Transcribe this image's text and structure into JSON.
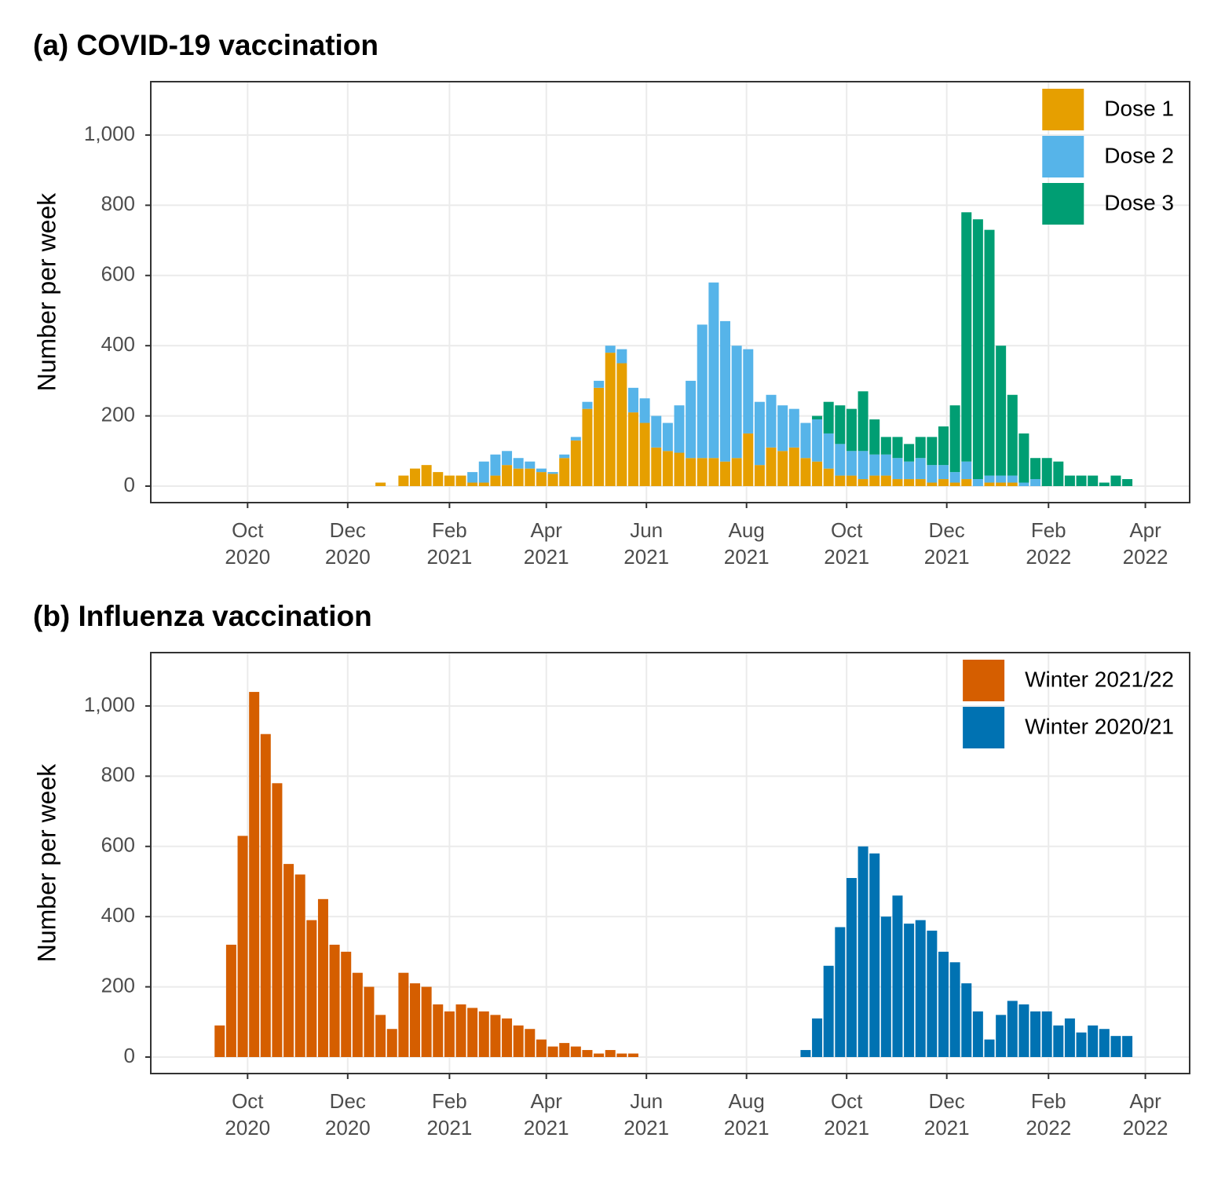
{
  "chart_data": [
    {
      "type": "bar",
      "stacked": true,
      "title": "(a) COVID-19 vaccination",
      "ylabel": "Number per week",
      "x": [
        "2020-12-21",
        "2020-12-28",
        "2021-01-04",
        "2021-01-11",
        "2021-01-18",
        "2021-01-25",
        "2021-02-01",
        "2021-02-08",
        "2021-02-15",
        "2021-02-22",
        "2021-03-01",
        "2021-03-08",
        "2021-03-15",
        "2021-03-22",
        "2021-03-29",
        "2021-04-05",
        "2021-04-12",
        "2021-04-19",
        "2021-04-26",
        "2021-05-03",
        "2021-05-10",
        "2021-05-17",
        "2021-05-24",
        "2021-05-31",
        "2021-06-07",
        "2021-06-14",
        "2021-06-21",
        "2021-06-28",
        "2021-07-05",
        "2021-07-12",
        "2021-07-19",
        "2021-07-26",
        "2021-08-02",
        "2021-08-09",
        "2021-08-16",
        "2021-08-23",
        "2021-08-30",
        "2021-09-06",
        "2021-09-13",
        "2021-09-20",
        "2021-09-27",
        "2021-10-04",
        "2021-10-11",
        "2021-10-18",
        "2021-10-25",
        "2021-11-01",
        "2021-11-08",
        "2021-11-15",
        "2021-11-22",
        "2021-11-29",
        "2021-12-06",
        "2021-12-13",
        "2021-12-20",
        "2021-12-27",
        "2022-01-03",
        "2022-01-10",
        "2022-01-17",
        "2022-01-24",
        "2022-01-31",
        "2022-02-07",
        "2022-02-14",
        "2022-02-21",
        "2022-02-28",
        "2022-03-07",
        "2022-03-14",
        "2022-03-21"
      ],
      "series": [
        {
          "name": "Dose 1",
          "color": "#E69F00",
          "values": [
            10,
            null,
            30,
            50,
            60,
            40,
            30,
            30,
            10,
            10,
            30,
            60,
            50,
            50,
            40,
            35,
            80,
            130,
            220,
            280,
            380,
            350,
            210,
            180,
            110,
            100,
            95,
            80,
            80,
            80,
            70,
            80,
            150,
            60,
            110,
            100,
            110,
            80,
            70,
            50,
            30,
            30,
            20,
            30,
            30,
            20,
            20,
            20,
            10,
            20,
            10,
            20,
            null,
            10,
            10,
            10,
            null,
            null,
            null,
            null,
            null,
            null,
            null,
            null,
            null,
            null
          ]
        },
        {
          "name": "Dose 2",
          "color": "#56B4E9",
          "values": [
            null,
            null,
            null,
            null,
            null,
            null,
            null,
            null,
            30,
            60,
            60,
            40,
            30,
            20,
            10,
            5,
            10,
            10,
            20,
            20,
            20,
            40,
            70,
            70,
            90,
            80,
            135,
            220,
            380,
            500,
            400,
            320,
            240,
            180,
            150,
            130,
            110,
            100,
            120,
            100,
            90,
            70,
            80,
            60,
            60,
            60,
            50,
            60,
            50,
            40,
            30,
            50,
            20,
            20,
            20,
            20,
            10,
            20,
            null,
            null,
            null,
            null,
            null,
            null,
            null,
            null
          ]
        },
        {
          "name": "Dose 3",
          "color": "#009E73",
          "values": [
            null,
            null,
            null,
            null,
            null,
            null,
            null,
            null,
            null,
            null,
            null,
            null,
            null,
            null,
            null,
            null,
            null,
            null,
            null,
            null,
            null,
            null,
            null,
            null,
            null,
            null,
            null,
            null,
            null,
            null,
            null,
            null,
            null,
            null,
            null,
            null,
            null,
            null,
            10,
            90,
            110,
            120,
            170,
            100,
            50,
            60,
            50,
            60,
            80,
            110,
            190,
            710,
            740,
            700,
            370,
            230,
            140,
            60,
            80,
            70,
            30,
            30,
            30,
            10,
            30,
            20
          ]
        }
      ],
      "xlim": [
        "2020-08-03",
        "2022-04-28"
      ],
      "xticks": [
        {
          "value": "2020-10-01",
          "label": "Oct\n2020"
        },
        {
          "value": "2020-12-01",
          "label": "Dec\n2020"
        },
        {
          "value": "2021-02-01",
          "label": "Feb\n2021"
        },
        {
          "value": "2021-04-01",
          "label": "Apr\n2021"
        },
        {
          "value": "2021-06-01",
          "label": "Jun\n2021"
        },
        {
          "value": "2021-08-01",
          "label": "Aug\n2021"
        },
        {
          "value": "2021-10-01",
          "label": "Oct\n2021"
        },
        {
          "value": "2021-12-01",
          "label": "Dec\n2021"
        },
        {
          "value": "2022-02-01",
          "label": "Feb\n2022"
        },
        {
          "value": "2022-04-01",
          "label": "Apr\n2022"
        }
      ],
      "ylim": [
        -47,
        1152
      ],
      "yticks": [
        0,
        200,
        400,
        600,
        800,
        {
          "value": 1000,
          "label": "1,000"
        }
      ],
      "grid": true,
      "legend": "top-right"
    },
    {
      "type": "bar",
      "stacked": true,
      "title": "(b) Influenza vaccination",
      "ylabel": "Number per week",
      "x": [
        "2020-09-14",
        "2020-09-21",
        "2020-09-28",
        "2020-10-05",
        "2020-10-12",
        "2020-10-19",
        "2020-10-26",
        "2020-11-02",
        "2020-11-09",
        "2020-11-16",
        "2020-11-23",
        "2020-11-30",
        "2020-12-07",
        "2020-12-14",
        "2020-12-21",
        "2020-12-28",
        "2021-01-04",
        "2021-01-11",
        "2021-01-18",
        "2021-01-25",
        "2021-02-01",
        "2021-02-08",
        "2021-02-15",
        "2021-02-22",
        "2021-03-01",
        "2021-03-08",
        "2021-03-15",
        "2021-03-22",
        "2021-03-29",
        "2021-04-05",
        "2021-04-12",
        "2021-04-19",
        "2021-04-26",
        "2021-05-03",
        "2021-05-10",
        "2021-05-17",
        "2021-05-24",
        "2021-05-31",
        "2021-06-07",
        "2021-06-14",
        "2021-06-21",
        "2021-06-28",
        "2021-07-05",
        "2021-07-12",
        "2021-07-19",
        "2021-07-26",
        "2021-08-02",
        "2021-08-09",
        "2021-08-16",
        "2021-08-23",
        "2021-08-30",
        "2021-09-06",
        "2021-09-13",
        "2021-09-20",
        "2021-09-27",
        "2021-10-04",
        "2021-10-11",
        "2021-10-18",
        "2021-10-25",
        "2021-11-01",
        "2021-11-08",
        "2021-11-15",
        "2021-11-22",
        "2021-11-29",
        "2021-12-06",
        "2021-12-13",
        "2021-12-20",
        "2021-12-27",
        "2022-01-03",
        "2022-01-10",
        "2022-01-17",
        "2022-01-24",
        "2022-01-31",
        "2022-02-07",
        "2022-02-14",
        "2022-02-21",
        "2022-02-28",
        "2022-03-07",
        "2022-03-14",
        "2022-03-21"
      ],
      "series": [
        {
          "name": "Winter 2021/22",
          "color": "#D55E00",
          "values": [
            90,
            320,
            630,
            1040,
            920,
            780,
            550,
            520,
            390,
            450,
            320,
            300,
            240,
            200,
            120,
            80,
            240,
            210,
            200,
            150,
            130,
            150,
            140,
            130,
            120,
            110,
            90,
            80,
            50,
            30,
            40,
            30,
            20,
            10,
            20,
            10,
            10,
            null,
            null,
            null,
            null,
            null,
            null,
            null,
            null,
            null,
            null,
            null,
            null,
            null,
            null,
            null,
            null,
            null,
            null,
            null,
            null,
            null,
            null,
            null,
            null,
            null,
            null,
            null,
            null,
            null,
            null,
            null,
            null,
            null,
            null,
            null,
            null,
            null,
            null,
            null,
            null,
            null,
            null,
            null
          ]
        },
        {
          "name": "Winter 2020/21",
          "color": "#0072B2",
          "values": [
            null,
            null,
            null,
            null,
            null,
            null,
            null,
            null,
            null,
            null,
            null,
            null,
            null,
            null,
            null,
            null,
            null,
            null,
            null,
            null,
            null,
            null,
            null,
            null,
            null,
            null,
            null,
            null,
            null,
            null,
            null,
            null,
            null,
            null,
            null,
            null,
            null,
            null,
            null,
            null,
            null,
            null,
            null,
            null,
            null,
            null,
            null,
            null,
            null,
            null,
            null,
            20,
            110,
            260,
            370,
            510,
            600,
            580,
            400,
            460,
            380,
            390,
            360,
            300,
            270,
            210,
            130,
            50,
            120,
            160,
            150,
            130,
            130,
            90,
            110,
            70,
            90,
            80,
            60,
            60
          ]
        }
      ],
      "xlim": [
        "2020-08-03",
        "2022-04-28"
      ],
      "xticks": [
        {
          "value": "2020-10-01",
          "label": "Oct\n2020"
        },
        {
          "value": "2020-12-01",
          "label": "Dec\n2020"
        },
        {
          "value": "2021-02-01",
          "label": "Feb\n2021"
        },
        {
          "value": "2021-04-01",
          "label": "Apr\n2021"
        },
        {
          "value": "2021-06-01",
          "label": "Jun\n2021"
        },
        {
          "value": "2021-08-01",
          "label": "Aug\n2021"
        },
        {
          "value": "2021-10-01",
          "label": "Oct\n2021"
        },
        {
          "value": "2021-12-01",
          "label": "Dec\n2021"
        },
        {
          "value": "2022-02-01",
          "label": "Feb\n2022"
        },
        {
          "value": "2022-04-01",
          "label": "Apr\n2022"
        }
      ],
      "ylim": [
        -47,
        1152
      ],
      "yticks": [
        0,
        200,
        400,
        600,
        800,
        {
          "value": 1000,
          "label": "1,000"
        }
      ],
      "grid": true,
      "legend": "top-right"
    }
  ]
}
